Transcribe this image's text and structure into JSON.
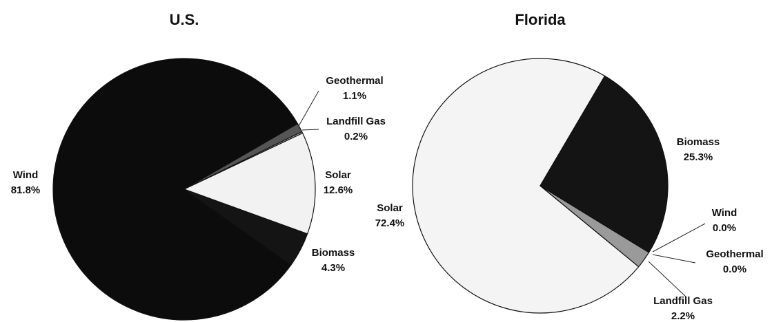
{
  "chart_data": [
    {
      "type": "pie",
      "title": "U.S.",
      "categories": [
        "Solar",
        "Biomass",
        "Wind",
        "Geothermal",
        "Landfill Gas"
      ],
      "values": [
        12.6,
        4.3,
        81.8,
        1.1,
        0.2
      ],
      "value_labels": [
        "12.6%",
        "4.3%",
        "81.8%",
        "1.1%",
        "0.2%"
      ],
      "colors": [
        "#f2f2f2",
        "#141414",
        "#0c0c0c",
        "#555555",
        "#aaaaaa"
      ]
    },
    {
      "type": "pie",
      "title": "Florida",
      "categories": [
        "Biomass",
        "Wind",
        "Geothermal",
        "Landfill Gas",
        "Solar"
      ],
      "values": [
        25.3,
        0.0,
        0.0,
        2.2,
        72.4
      ],
      "value_labels": [
        "25.3%",
        "0.0%",
        "0.0%",
        "2.2%",
        "72.4%"
      ],
      "colors": [
        "#141414",
        "#0c0c0c",
        "#555555",
        "#9a9a9a",
        "#f4f4f4"
      ]
    }
  ]
}
